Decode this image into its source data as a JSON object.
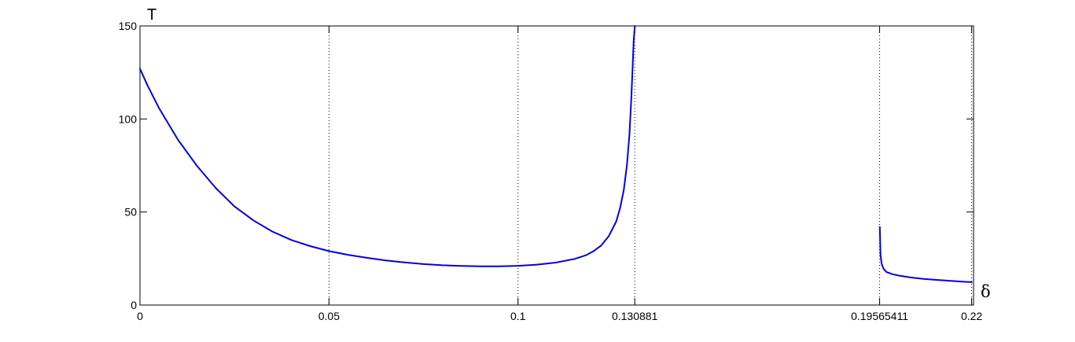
{
  "chart_data": {
    "type": "line",
    "title": "",
    "xlabel": "δ",
    "ylabel": "T",
    "xlim": [
      0,
      0.2205
    ],
    "ylim": [
      0,
      150
    ],
    "grid": "x-only-dotted",
    "x_ticks": [
      {
        "value": 0,
        "label": "0"
      },
      {
        "value": 0.05,
        "label": "0.05"
      },
      {
        "value": 0.1,
        "label": "0.1"
      },
      {
        "value": 0.130881,
        "label": "0.130881"
      },
      {
        "value": 0.19565411,
        "label": "0.19565411"
      },
      {
        "value": 0.22,
        "label": "0.22"
      }
    ],
    "y_ticks": [
      {
        "value": 0,
        "label": "0"
      },
      {
        "value": 50,
        "label": "50"
      },
      {
        "value": 100,
        "label": "100"
      },
      {
        "value": 150,
        "label": "150"
      }
    ],
    "line_color": "#0000e6",
    "series": [
      {
        "x": [
          0,
          0.002,
          0.005,
          0.01,
          0.015,
          0.02,
          0.025,
          0.03,
          0.035,
          0.04,
          0.045,
          0.05,
          0.055,
          0.06,
          0.065,
          0.07,
          0.075,
          0.08,
          0.085,
          0.09,
          0.095,
          0.1,
          0.105,
          0.11,
          0.115,
          0.118,
          0.12,
          0.122,
          0.124,
          0.126,
          0.127,
          0.128,
          0.1288,
          0.1295,
          0.13,
          0.1303,
          0.1306,
          0.1309
        ],
        "y": [
          127,
          118,
          106,
          89,
          75,
          63,
          53,
          45.5,
          39.5,
          35,
          31.7,
          29,
          27,
          25.4,
          24,
          22.9,
          22,
          21.4,
          21,
          20.8,
          20.8,
          21.1,
          21.7,
          22.8,
          24.8,
          26.8,
          29,
          32,
          37,
          45,
          52,
          62,
          75,
          92,
          112,
          127,
          142,
          150
        ]
      },
      {
        "x": [
          0.1957,
          0.1959,
          0.1962,
          0.1967,
          0.1975,
          0.199,
          0.201,
          0.204,
          0.207,
          0.21,
          0.213,
          0.216,
          0.218,
          0.22
        ],
        "y": [
          42,
          27,
          22,
          19.5,
          17.7,
          16.6,
          15.7,
          14.8,
          14.1,
          13.6,
          13.2,
          12.8,
          12.5,
          12.3
        ]
      }
    ]
  }
}
